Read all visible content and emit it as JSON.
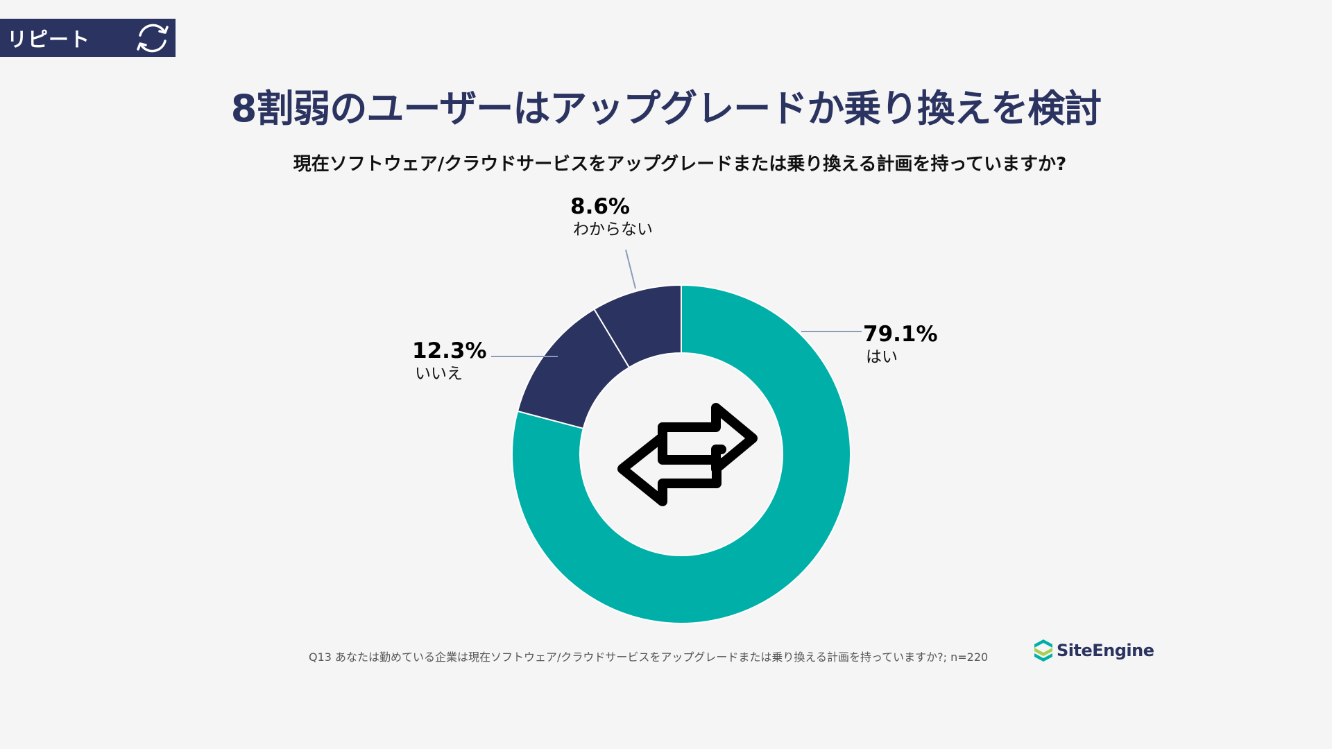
{
  "badge": {
    "label": "リピート",
    "icon": "refresh-icon"
  },
  "title": "8割弱のユーザーはアップグレードか乗り換えを検討",
  "subtitle": "現在ソフトウェア/クラウドサービスをアップグレードまたは乗り換える計画を持っていますか?",
  "chart_data": {
    "type": "pie",
    "donut": true,
    "center_icon": "swap-arrows-icon",
    "slices": [
      {
        "label": "はい",
        "value": 79.1,
        "display": "79.1%",
        "color": "#00b0a8"
      },
      {
        "label": "いいえ",
        "value": 12.3,
        "display": "12.3%",
        "color": "#2b3360"
      },
      {
        "label": "わからない",
        "value": 8.6,
        "display": "8.6%",
        "color": "#2b3360"
      }
    ]
  },
  "footnote": "Q13 あなたは勤めている企業は現在ソフトウェア/クラウドサービスをアップグレードまたは乗り換える計画を持っていますか?; n=220",
  "logo": {
    "text": "SiteEngine",
    "icon": "siteengine-logo-icon"
  }
}
